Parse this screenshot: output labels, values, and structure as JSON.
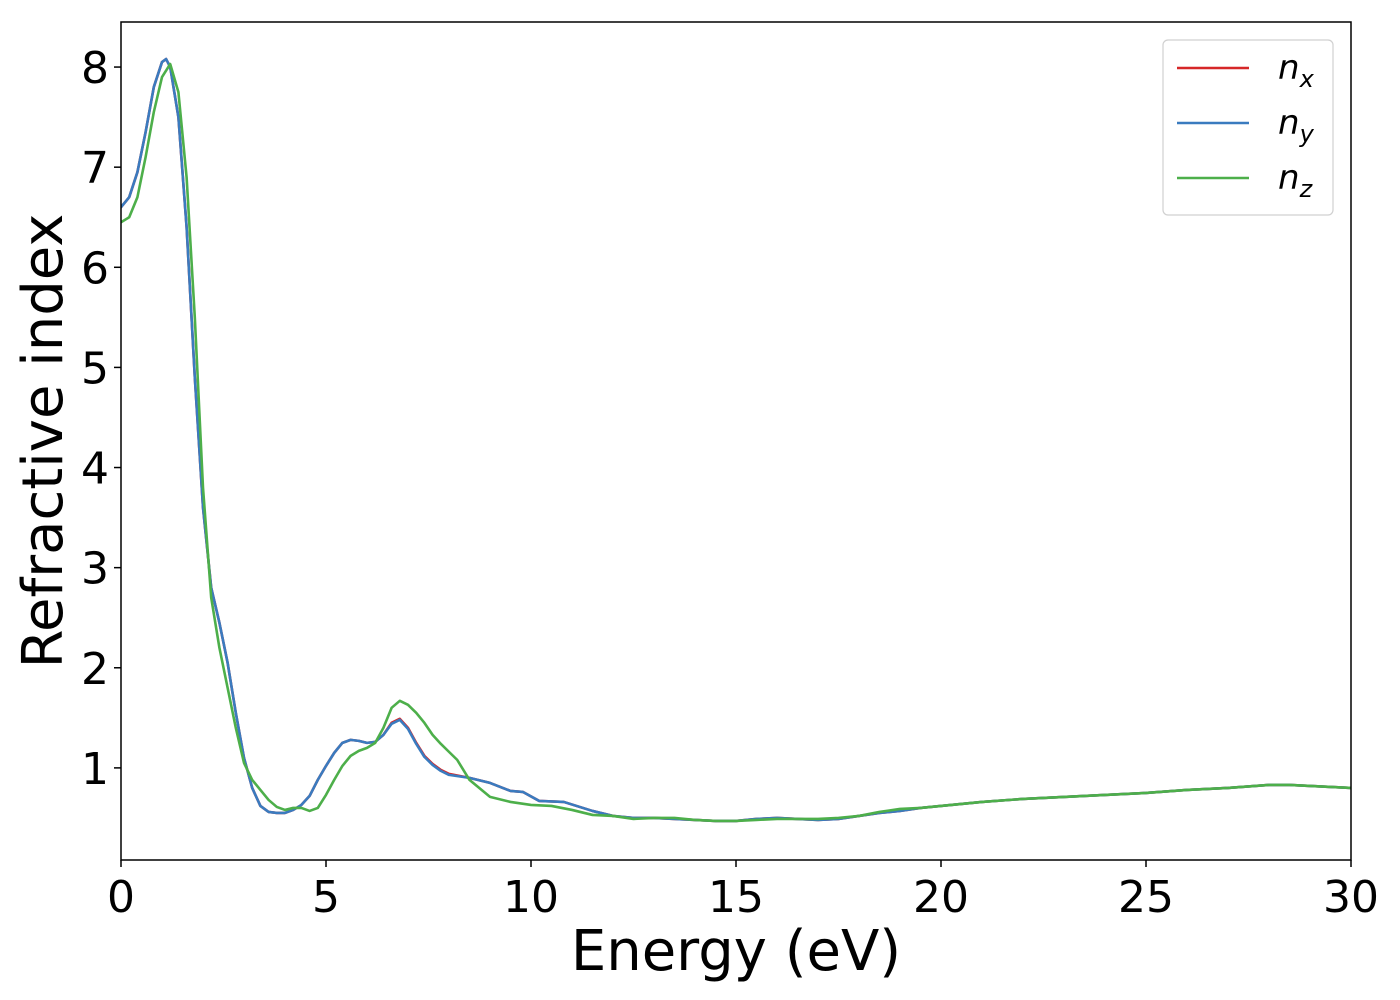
{
  "chart_data": {
    "type": "line",
    "title": "",
    "xlabel": "Energy (eV)",
    "ylabel": "Refractive index",
    "xlim": [
      0,
      30
    ],
    "ylim": [
      0.08,
      8.45
    ],
    "xticks": [
      0,
      5,
      10,
      15,
      20,
      25,
      30
    ],
    "yticks": [
      1,
      2,
      3,
      4,
      5,
      6,
      7,
      8
    ],
    "grid": false,
    "legend": {
      "placement": "top-right"
    },
    "series": [
      {
        "name": "n",
        "subscript": "x",
        "color": "#d62728",
        "x": [
          0,
          0.2,
          0.4,
          0.6,
          0.8,
          1.0,
          1.1,
          1.2,
          1.4,
          1.6,
          1.8,
          2.0,
          2.2,
          2.4,
          2.6,
          2.8,
          3.0,
          3.2,
          3.4,
          3.6,
          3.8,
          4.0,
          4.2,
          4.4,
          4.6,
          4.8,
          5.0,
          5.2,
          5.4,
          5.6,
          5.8,
          6.0,
          6.2,
          6.4,
          6.6,
          6.8,
          7.0,
          7.2,
          7.4,
          7.6,
          7.8,
          8.0,
          8.5,
          9.0,
          9.5,
          9.8,
          10.2,
          10.8,
          11.5,
          12.0,
          12.5,
          13.0,
          13.5,
          14.0,
          14.5,
          15.0,
          15.5,
          16.0,
          16.5,
          17.0,
          17.5,
          18.0,
          18.5,
          19.0,
          19.5,
          20.0,
          21.0,
          22.0,
          23.0,
          24.0,
          25.0,
          26.0,
          27.0,
          28.0,
          28.5,
          29.0,
          29.5,
          30.0
        ],
        "values": [
          6.6,
          6.7,
          6.95,
          7.35,
          7.8,
          8.05,
          8.08,
          8.0,
          7.5,
          6.4,
          4.9,
          3.6,
          2.8,
          2.45,
          2.05,
          1.55,
          1.1,
          0.8,
          0.62,
          0.56,
          0.55,
          0.55,
          0.58,
          0.63,
          0.72,
          0.88,
          1.02,
          1.15,
          1.25,
          1.28,
          1.27,
          1.25,
          1.26,
          1.33,
          1.45,
          1.49,
          1.4,
          1.25,
          1.12,
          1.04,
          0.98,
          0.94,
          0.9,
          0.85,
          0.77,
          0.76,
          0.67,
          0.66,
          0.57,
          0.52,
          0.5,
          0.5,
          0.49,
          0.48,
          0.47,
          0.47,
          0.49,
          0.5,
          0.49,
          0.48,
          0.49,
          0.52,
          0.55,
          0.57,
          0.6,
          0.62,
          0.66,
          0.69,
          0.71,
          0.73,
          0.75,
          0.78,
          0.8,
          0.83,
          0.83,
          0.82,
          0.81,
          0.8
        ]
      },
      {
        "name": "n",
        "subscript": "y",
        "color": "#3a7bbf",
        "x": [
          0,
          0.2,
          0.4,
          0.6,
          0.8,
          1.0,
          1.1,
          1.2,
          1.4,
          1.6,
          1.8,
          2.0,
          2.2,
          2.4,
          2.6,
          2.8,
          3.0,
          3.2,
          3.4,
          3.6,
          3.8,
          4.0,
          4.2,
          4.4,
          4.6,
          4.8,
          5.0,
          5.2,
          5.4,
          5.6,
          5.8,
          6.0,
          6.2,
          6.4,
          6.6,
          6.8,
          7.0,
          7.2,
          7.4,
          7.6,
          7.8,
          8.0,
          8.5,
          9.0,
          9.5,
          9.8,
          10.2,
          10.8,
          11.5,
          12.0,
          12.5,
          13.0,
          13.5,
          14.0,
          14.5,
          15.0,
          15.5,
          16.0,
          16.5,
          17.0,
          17.5,
          18.0,
          18.5,
          19.0,
          19.5,
          20.0,
          21.0,
          22.0,
          23.0,
          24.0,
          25.0,
          26.0,
          27.0,
          28.0,
          28.5,
          29.0,
          29.5,
          30.0
        ],
        "values": [
          6.6,
          6.7,
          6.95,
          7.35,
          7.8,
          8.05,
          8.08,
          8.0,
          7.5,
          6.4,
          4.9,
          3.6,
          2.8,
          2.45,
          2.05,
          1.55,
          1.1,
          0.8,
          0.62,
          0.56,
          0.55,
          0.55,
          0.58,
          0.63,
          0.72,
          0.88,
          1.02,
          1.15,
          1.25,
          1.28,
          1.27,
          1.25,
          1.26,
          1.33,
          1.44,
          1.48,
          1.39,
          1.24,
          1.11,
          1.03,
          0.97,
          0.93,
          0.9,
          0.85,
          0.77,
          0.76,
          0.67,
          0.66,
          0.57,
          0.52,
          0.5,
          0.5,
          0.49,
          0.48,
          0.47,
          0.47,
          0.49,
          0.5,
          0.49,
          0.48,
          0.49,
          0.52,
          0.55,
          0.57,
          0.6,
          0.62,
          0.66,
          0.69,
          0.71,
          0.73,
          0.75,
          0.78,
          0.8,
          0.83,
          0.83,
          0.82,
          0.81,
          0.8
        ]
      },
      {
        "name": "n",
        "subscript": "z",
        "color": "#4daf4a",
        "x": [
          0,
          0.2,
          0.4,
          0.6,
          0.8,
          1.0,
          1.2,
          1.4,
          1.6,
          1.8,
          2.0,
          2.2,
          2.4,
          2.6,
          2.8,
          3.0,
          3.2,
          3.4,
          3.6,
          3.8,
          4.0,
          4.2,
          4.4,
          4.6,
          4.8,
          5.0,
          5.2,
          5.4,
          5.6,
          5.8,
          6.0,
          6.2,
          6.4,
          6.6,
          6.8,
          7.0,
          7.2,
          7.4,
          7.6,
          7.8,
          8.0,
          8.2,
          8.5,
          9.0,
          9.5,
          10.0,
          10.5,
          11.0,
          11.5,
          12.0,
          12.5,
          13.0,
          13.5,
          14.0,
          14.5,
          15.0,
          15.5,
          16.0,
          16.5,
          17.0,
          17.5,
          18.0,
          18.5,
          19.0,
          19.5,
          20.0,
          21.0,
          22.0,
          23.0,
          24.0,
          25.0,
          26.0,
          27.0,
          28.0,
          28.5,
          29.0,
          29.5,
          30.0
        ],
        "values": [
          6.45,
          6.5,
          6.7,
          7.1,
          7.55,
          7.9,
          8.03,
          7.75,
          6.9,
          5.5,
          3.8,
          2.7,
          2.2,
          1.8,
          1.4,
          1.05,
          0.88,
          0.78,
          0.68,
          0.61,
          0.58,
          0.6,
          0.6,
          0.57,
          0.6,
          0.73,
          0.88,
          1.02,
          1.12,
          1.17,
          1.2,
          1.25,
          1.4,
          1.6,
          1.67,
          1.63,
          1.55,
          1.45,
          1.33,
          1.24,
          1.16,
          1.08,
          0.88,
          0.71,
          0.66,
          0.63,
          0.62,
          0.58,
          0.53,
          0.52,
          0.49,
          0.5,
          0.5,
          0.48,
          0.47,
          0.47,
          0.48,
          0.49,
          0.49,
          0.49,
          0.5,
          0.52,
          0.56,
          0.59,
          0.6,
          0.62,
          0.66,
          0.69,
          0.71,
          0.73,
          0.75,
          0.78,
          0.8,
          0.83,
          0.83,
          0.82,
          0.81,
          0.8
        ]
      }
    ]
  }
}
